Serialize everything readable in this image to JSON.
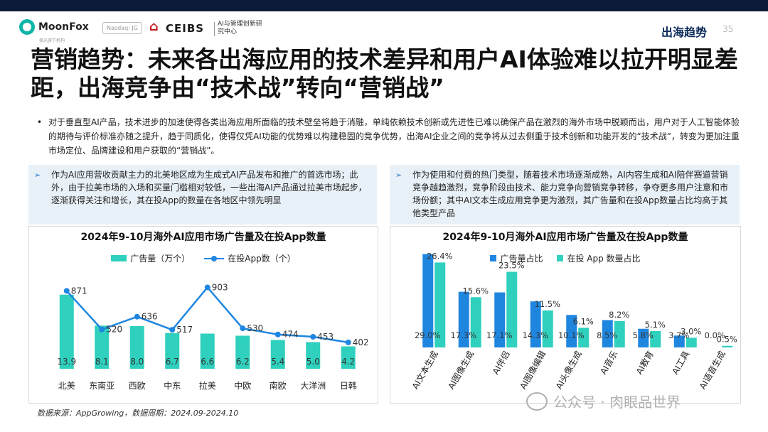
{
  "header": {
    "brand": "MoonFox",
    "brand_sub": "极光旗下机构",
    "nasdaq": "Nasdaq: JG",
    "partner": "CEIBS",
    "partner_sub": "AI与管理创新研究中心",
    "section": "出海趋势",
    "page_number": "35"
  },
  "title": "营销趋势：未来各出海应用的技术差异和用户AI体验难以拉开明显差距，出海竞争由“技术战”转向“营销战”",
  "bullet": "对于垂直型AI产品，技术进步的加速使得各类出海应用所面临的技术壁垒将趋于消融，单纯依赖技术创新或先进性已难以确保产品在激烈的海外市场中脱颖而出，用户对于人工智能体验的期待与评价标准亦随之提升，趋于同质化，使得仅凭AI功能的优势难以构建稳固的竞争优势，出海AI企业之间的竞争将从过去侧重于技术创新和功能开发的“技术战”，转变为更加注重市场定位、品牌建设和用户获取的“营销战”。",
  "panels": {
    "left": "作为AI应用营收贡献主力的北美地区成为生成式AI产品发布和推广的首选市场；此外，由于拉美市场的入场和买量门槛相对较低，一些出海AI产品通过拉美市场起步，逐渐获得关注和增长，其在投App的数量在各地区中领先明显",
    "right": "作为使用和付费的热门类型，随着技术市场逐渐成熟，AI内容生成和AI陪伴赛道营销竞争越趋激烈，竞争阶段由技术、能力竞争向营销竞争转移，争夺更多用户注意和市场份额；其中AI文本生成应用竞争更为激烈，其广告量和在投App数量占比均高于其他类型产品"
  },
  "source": "数据来源：AppGrowing，数据周期：2024.09-2024.10",
  "watermark": "公众号 · 肉眼品世界",
  "colors": {
    "teal": "#2fd0bd",
    "blue": "#1f86e0",
    "navy": "#0d1b3a",
    "panel_bg": "#e9f1f8"
  },
  "chart_data": [
    {
      "type": "bar",
      "title": "2024年9-10月海外AI应用市场广告量及在投App数量",
      "legend": [
        "广告量（万个）",
        "在投App数（个）"
      ],
      "categories": [
        "北美",
        "东南亚",
        "西欧",
        "中东",
        "拉美",
        "中欧",
        "南欧",
        "大洋洲",
        "日韩"
      ],
      "series": [
        {
          "name": "广告量（万个）",
          "type": "bar",
          "values": [
            13.9,
            8.1,
            8.0,
            6.7,
            6.6,
            6.2,
            5.4,
            5.0,
            4.2
          ],
          "labels": [
            "13.9",
            "8.1",
            "8.0",
            "6.7",
            "6.6",
            "6.2",
            "5.4",
            "5.0",
            "4.2"
          ]
        },
        {
          "name": "在投App数（个）",
          "type": "line",
          "values": [
            871,
            520,
            636,
            517,
            903,
            530,
            474,
            453,
            402
          ],
          "labels": [
            "871",
            "520",
            "636",
            "517",
            "903",
            "530",
            "474",
            "453",
            "402"
          ]
        }
      ],
      "ylim_bar": [
        0,
        16
      ],
      "ylim_line": [
        0,
        1100
      ],
      "legend_position": "top-center",
      "grid": false
    },
    {
      "type": "bar",
      "title": "2024年9-10月海外AI应用市场广告量及在投App数量",
      "legend": [
        "广告量占比",
        "在投 App 数量占比"
      ],
      "categories": [
        "AI文本生成",
        "AI图像生成",
        "AI伴侣",
        "AI图像编辑",
        "AI头像生成",
        "AI音乐",
        "AI教育",
        "AI工具",
        "AI语音生成"
      ],
      "series": [
        {
          "name": "广告量占比",
          "values": [
            29.0,
            17.3,
            17.1,
            14.3,
            10.1,
            8.5,
            5.8,
            3.7,
            0.0
          ],
          "labels": [
            "29.0%",
            "17.3%",
            "17.1%",
            "14.3%",
            "10.1%",
            "8.5%",
            "5.8%",
            "3.7%",
            "0.0%"
          ]
        },
        {
          "name": "在投 App 数量占比",
          "values": [
            26.4,
            15.6,
            23.5,
            11.5,
            6.1,
            8.2,
            5.1,
            3.0,
            0.5
          ],
          "labels": [
            "26.4%",
            "15.6%",
            "23.5%",
            "11.5%",
            "6.1%",
            "8.2%",
            "5.1%",
            "3.0%",
            "0.5%"
          ]
        }
      ],
      "ylim": [
        0,
        32
      ],
      "legend_position": "top-center",
      "grid": false
    }
  ]
}
